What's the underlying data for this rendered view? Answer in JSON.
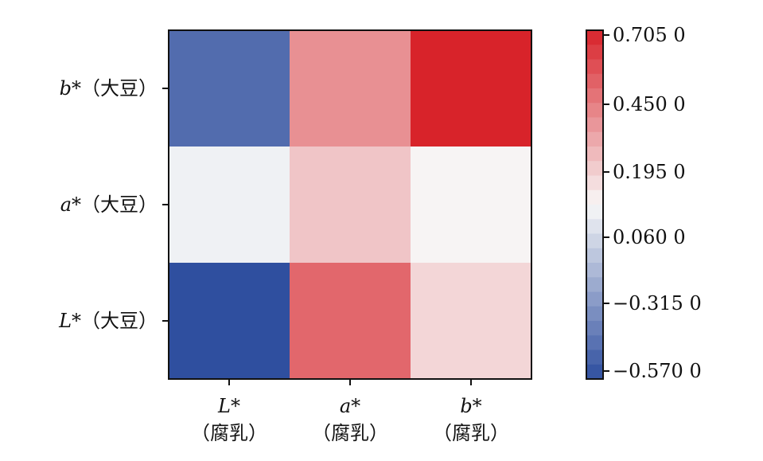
{
  "chart_data": {
    "type": "heatmap",
    "title": "",
    "x_categories": [
      {
        "var": "L*",
        "sample": "（腐乳）"
      },
      {
        "var": "a*",
        "sample": "（腐乳）"
      },
      {
        "var": "b*",
        "sample": "（腐乳）"
      }
    ],
    "y_categories": [
      {
        "var": "b*",
        "sample": "（大豆）"
      },
      {
        "var": "a*",
        "sample": "（大豆）"
      },
      {
        "var": "L*",
        "sample": "（大豆）"
      }
    ],
    "values": [
      [
        -0.46,
        0.38,
        0.705
      ],
      [
        0.04,
        0.22,
        0.08
      ],
      [
        -0.57,
        0.5,
        0.17
      ]
    ],
    "colorbar": {
      "min": -0.57,
      "max": 0.705,
      "ticks": [
        0.705,
        0.45,
        0.195,
        0.06,
        -0.315,
        -0.57
      ],
      "tick_labels": [
        "0.705 0",
        "0.450 0",
        "0.195 0",
        "0.060 0",
        "−0.315 0",
        "−0.570 0"
      ]
    },
    "colors": {
      "neg": "#2f4f9f",
      "mid": "#f8f8f8",
      "pos": "#d8232a"
    }
  }
}
